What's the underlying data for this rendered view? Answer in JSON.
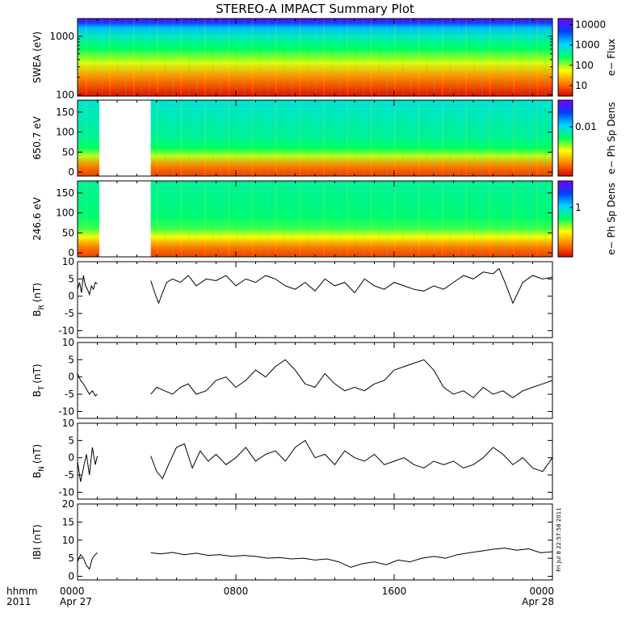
{
  "title": "STEREO-A IMPACT Summary Plot",
  "stamp": "Fri Jul 8 22:57:58 2011",
  "time_axis": {
    "range_hours": [
      0,
      24
    ],
    "ticks": [
      {
        "hour": 0,
        "line1": "0000",
        "line2": "Apr 27"
      },
      {
        "hour": 8,
        "line1": "0800",
        "line2": ""
      },
      {
        "hour": 16,
        "line1": "1600",
        "line2": ""
      },
      {
        "hour": 24,
        "line1": "0000",
        "line2": "Apr 28"
      }
    ],
    "left_line1": "hhmm",
    "left_line2": "2011"
  },
  "colors": {
    "axis": "#000000",
    "trace": "#000000",
    "colormap": [
      "#7a00ff",
      "#0040ff",
      "#00d8ff",
      "#00ff60",
      "#ffff00",
      "#ff8000",
      "#e00000"
    ]
  },
  "chart_data": [
    {
      "type": "heatmap",
      "ylabel": "SWEA (eV)",
      "y_scale": "log",
      "ylim": [
        95,
        2000
      ],
      "yticks": [
        "100",
        "1000"
      ],
      "colorbar": {
        "label": "e− Flux",
        "scale": "log",
        "range": [
          3,
          20000
        ],
        "ticks": [
          "10",
          "100",
          "1000",
          "10000"
        ]
      },
      "gaps_hours": [],
      "value_profile": [
        {
          "y": 95,
          "level": 0.98
        },
        {
          "y": 200,
          "level": 0.82
        },
        {
          "y": 350,
          "level": 0.64
        },
        {
          "y": 600,
          "level": 0.5
        },
        {
          "y": 1000,
          "level": 0.4
        },
        {
          "y": 1400,
          "level": 0.3
        },
        {
          "y": 1700,
          "level": 0.14
        },
        {
          "y": 2000,
          "level": 0.02
        }
      ]
    },
    {
      "type": "heatmap",
      "ylabel": "650.7 eV",
      "y_scale": "linear",
      "ylim": [
        -10,
        180
      ],
      "yticks": [
        "0",
        "50",
        "100",
        "150"
      ],
      "colorbar": {
        "label": "e− Ph Sp Dens",
        "scale": "log",
        "ticks": [
          "0.01"
        ]
      },
      "gaps_hours": [
        [
          1.1,
          3.7
        ]
      ],
      "value_profile": [
        {
          "y": -10,
          "level": 0.92
        },
        {
          "y": 15,
          "level": 0.84
        },
        {
          "y": 40,
          "level": 0.62
        },
        {
          "y": 60,
          "level": 0.5
        },
        {
          "y": 90,
          "level": 0.44
        },
        {
          "y": 180,
          "level": 0.38
        }
      ]
    },
    {
      "type": "heatmap",
      "ylabel": "246.6 eV",
      "y_scale": "linear",
      "ylim": [
        -10,
        180
      ],
      "yticks": [
        "0",
        "50",
        "100",
        "150"
      ],
      "colorbar": {
        "label": "e− Ph Sp Dens",
        "scale": "log",
        "ticks": [
          "1"
        ]
      },
      "gaps_hours": [
        [
          1.1,
          3.7
        ]
      ],
      "value_profile": [
        {
          "y": -10,
          "level": 0.92
        },
        {
          "y": 15,
          "level": 0.84
        },
        {
          "y": 40,
          "level": 0.66
        },
        {
          "y": 60,
          "level": 0.54
        },
        {
          "y": 90,
          "level": 0.48
        },
        {
          "y": 180,
          "level": 0.44
        }
      ]
    },
    {
      "type": "line",
      "ylabel": "B",
      "ylabel_sub": "R",
      "ylabel_unit": "(nT)",
      "ylim": [
        -12,
        10
      ],
      "yticks": [
        "-10",
        "-5",
        "0",
        "5",
        "10"
      ],
      "series": [
        {
          "x": [
            0,
            0.1,
            0.2,
            0.3,
            0.4,
            0.5,
            0.6,
            0.7,
            0.8,
            0.9,
            1.0
          ],
          "y": [
            2,
            4,
            1,
            6,
            3,
            2,
            0.5,
            3,
            2,
            4,
            3.5
          ]
        },
        {
          "x": [
            3.7,
            3.9,
            4.1,
            4.3,
            4.5,
            4.8,
            5.2,
            5.6,
            6.0,
            6.5,
            7.0,
            7.5,
            8.0,
            8.5,
            9.0,
            9.5,
            10.0,
            10.5,
            11.0,
            11.5,
            12.0,
            12.5,
            13.0,
            13.5,
            14.0,
            14.5,
            15.0,
            15.5,
            16.0,
            16.5,
            17.0,
            17.5,
            18.0,
            18.5,
            19.0,
            19.5,
            20.0,
            20.5,
            21.0,
            21.3,
            21.6,
            22.0,
            22.5,
            23.0,
            23.5,
            24.0
          ],
          "y": [
            4.5,
            1,
            -2,
            1,
            4,
            5,
            4,
            6,
            3,
            5,
            4.5,
            6,
            3,
            5,
            4,
            6,
            5,
            3,
            2,
            4,
            1.5,
            5,
            3,
            4,
            1,
            5,
            3,
            2,
            4,
            3,
            2,
            1.5,
            3,
            2,
            4,
            6,
            5,
            7,
            6.5,
            8,
            4,
            -2,
            4,
            6,
            5,
            5.5
          ]
        }
      ]
    },
    {
      "type": "line",
      "ylabel": "B",
      "ylabel_sub": "T",
      "ylabel_unit": "(nT)",
      "ylim": [
        -12,
        10
      ],
      "yticks": [
        "-10",
        "-5",
        "0",
        "5",
        "10"
      ],
      "series": [
        {
          "x": [
            0,
            0.15,
            0.3,
            0.45,
            0.6,
            0.75,
            0.9,
            1.0
          ],
          "y": [
            1,
            -1,
            -2,
            -3.5,
            -5,
            -4,
            -5.5,
            -5
          ]
        },
        {
          "x": [
            3.7,
            4.0,
            4.4,
            4.8,
            5.2,
            5.6,
            6.0,
            6.5,
            7.0,
            7.5,
            8.0,
            8.5,
            9.0,
            9.5,
            10.0,
            10.5,
            11.0,
            11.5,
            12.0,
            12.5,
            13.0,
            13.5,
            14.0,
            14.5,
            15.0,
            15.5,
            16.0,
            16.5,
            17.0,
            17.5,
            18.0,
            18.5,
            19.0,
            19.5,
            20.0,
            20.5,
            21.0,
            21.5,
            22.0,
            22.5,
            23.0,
            23.5,
            24.0
          ],
          "y": [
            -5,
            -3,
            -4,
            -5,
            -3,
            -2,
            -5,
            -4,
            -1,
            0,
            -3,
            -1,
            2,
            0,
            3,
            5,
            2,
            -2,
            -3,
            1,
            -2,
            -4,
            -3,
            -4,
            -2,
            -1,
            2,
            3,
            4,
            5,
            2,
            -3,
            -5,
            -4,
            -6,
            -3,
            -5,
            -4,
            -6,
            -4,
            -3,
            -2,
            -1
          ]
        }
      ]
    },
    {
      "type": "line",
      "ylabel": "B",
      "ylabel_sub": "N",
      "ylabel_unit": "(nT)",
      "ylim": [
        -12,
        10
      ],
      "yticks": [
        "-10",
        "-5",
        "0",
        "5",
        "10"
      ],
      "series": [
        {
          "x": [
            0,
            0.15,
            0.3,
            0.45,
            0.6,
            0.75,
            0.9,
            1.0
          ],
          "y": [
            -1,
            -7,
            -3,
            1,
            -5,
            3,
            -2,
            0.5
          ]
        },
        {
          "x": [
            3.7,
            4.0,
            4.3,
            4.6,
            5.0,
            5.4,
            5.8,
            6.2,
            6.6,
            7.0,
            7.5,
            8.0,
            8.5,
            9.0,
            9.5,
            10.0,
            10.5,
            11.0,
            11.5,
            12.0,
            12.5,
            13.0,
            13.5,
            14.0,
            14.5,
            15.0,
            15.5,
            16.0,
            16.5,
            17.0,
            17.5,
            18.0,
            18.5,
            19.0,
            19.5,
            20.0,
            20.5,
            21.0,
            21.5,
            22.0,
            22.5,
            23.0,
            23.5,
            24.0
          ],
          "y": [
            0.5,
            -4,
            -6,
            -2,
            3,
            4,
            -3,
            2,
            -1,
            1,
            -2,
            0,
            3,
            -1,
            1,
            2,
            -1,
            3,
            5,
            0,
            1,
            -2,
            2,
            0,
            -1,
            1,
            -2,
            -1,
            0,
            -2,
            -3,
            -1,
            -2,
            -1,
            -3,
            -2,
            0,
            3,
            1,
            -2,
            0,
            -3,
            -4,
            0
          ]
        }
      ]
    },
    {
      "type": "line",
      "ylabel": "IBI",
      "ylabel_sub": "",
      "ylabel_unit": "(nT)",
      "ylim": [
        -1,
        20
      ],
      "yticks": [
        "0",
        "5",
        "10",
        "15",
        "20"
      ],
      "series": [
        {
          "x": [
            0,
            0.15,
            0.3,
            0.45,
            0.6,
            0.75,
            0.9,
            1.0
          ],
          "y": [
            4,
            6,
            5,
            3,
            2,
            5,
            6,
            6.5
          ]
        },
        {
          "x": [
            3.7,
            4.2,
            4.8,
            5.4,
            6.0,
            6.6,
            7.2,
            7.8,
            8.4,
            9.0,
            9.6,
            10.2,
            10.8,
            11.4,
            12.0,
            12.6,
            13.2,
            13.8,
            14.4,
            15.0,
            15.6,
            16.2,
            16.8,
            17.4,
            18.0,
            18.6,
            19.2,
            19.8,
            20.4,
            21.0,
            21.6,
            22.2,
            22.8,
            23.4,
            24.0
          ],
          "y": [
            6.5,
            6.2,
            6.6,
            6,
            6.4,
            5.8,
            6,
            5.5,
            5.8,
            5.5,
            5,
            5.2,
            4.8,
            5,
            4.5,
            4.8,
            4,
            2.5,
            3.5,
            4,
            3.2,
            4.5,
            4,
            5,
            5.5,
            5,
            6,
            6.5,
            7,
            7.5,
            7.8,
            7.2,
            7.6,
            6.5,
            6.8
          ]
        }
      ]
    }
  ]
}
